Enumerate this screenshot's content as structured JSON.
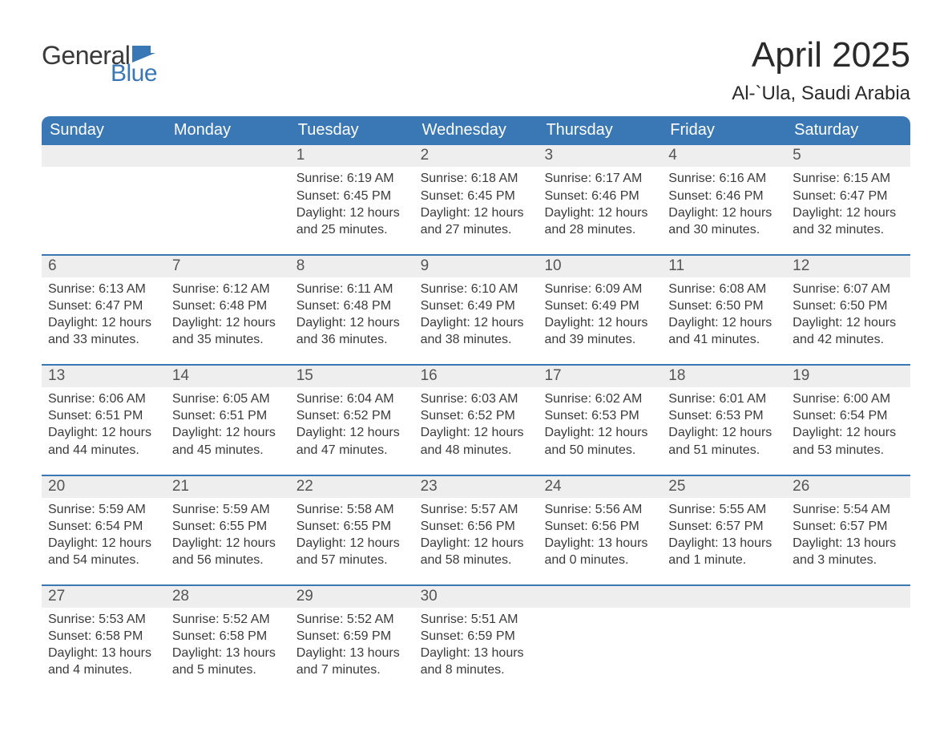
{
  "colors": {
    "header_bg": "#3a78b5",
    "header_text": "#ffffff",
    "daynum_bg": "#eeeeee",
    "daynum_text": "#555555",
    "body_text": "#3b3b3b",
    "rule": "#3a78b5",
    "title_text": "#2a2a2a",
    "logo_gray": "#3a3a3a",
    "logo_blue": "#3a78b5",
    "page_bg": "#ffffff"
  },
  "logo": {
    "line1": "General",
    "line2": "Blue"
  },
  "title": "April 2025",
  "subtitle": "Al-`Ula, Saudi Arabia",
  "dayHeaders": [
    "Sunday",
    "Monday",
    "Tuesday",
    "Wednesday",
    "Thursday",
    "Friday",
    "Saturday"
  ],
  "weeks": [
    [
      null,
      null,
      {
        "n": "1",
        "sunrise": "6:19 AM",
        "sunset": "6:45 PM",
        "daylight": "12 hours and 25 minutes."
      },
      {
        "n": "2",
        "sunrise": "6:18 AM",
        "sunset": "6:45 PM",
        "daylight": "12 hours and 27 minutes."
      },
      {
        "n": "3",
        "sunrise": "6:17 AM",
        "sunset": "6:46 PM",
        "daylight": "12 hours and 28 minutes."
      },
      {
        "n": "4",
        "sunrise": "6:16 AM",
        "sunset": "6:46 PM",
        "daylight": "12 hours and 30 minutes."
      },
      {
        "n": "5",
        "sunrise": "6:15 AM",
        "sunset": "6:47 PM",
        "daylight": "12 hours and 32 minutes."
      }
    ],
    [
      {
        "n": "6",
        "sunrise": "6:13 AM",
        "sunset": "6:47 PM",
        "daylight": "12 hours and 33 minutes."
      },
      {
        "n": "7",
        "sunrise": "6:12 AM",
        "sunset": "6:48 PM",
        "daylight": "12 hours and 35 minutes."
      },
      {
        "n": "8",
        "sunrise": "6:11 AM",
        "sunset": "6:48 PM",
        "daylight": "12 hours and 36 minutes."
      },
      {
        "n": "9",
        "sunrise": "6:10 AM",
        "sunset": "6:49 PM",
        "daylight": "12 hours and 38 minutes."
      },
      {
        "n": "10",
        "sunrise": "6:09 AM",
        "sunset": "6:49 PM",
        "daylight": "12 hours and 39 minutes."
      },
      {
        "n": "11",
        "sunrise": "6:08 AM",
        "sunset": "6:50 PM",
        "daylight": "12 hours and 41 minutes."
      },
      {
        "n": "12",
        "sunrise": "6:07 AM",
        "sunset": "6:50 PM",
        "daylight": "12 hours and 42 minutes."
      }
    ],
    [
      {
        "n": "13",
        "sunrise": "6:06 AM",
        "sunset": "6:51 PM",
        "daylight": "12 hours and 44 minutes."
      },
      {
        "n": "14",
        "sunrise": "6:05 AM",
        "sunset": "6:51 PM",
        "daylight": "12 hours and 45 minutes."
      },
      {
        "n": "15",
        "sunrise": "6:04 AM",
        "sunset": "6:52 PM",
        "daylight": "12 hours and 47 minutes."
      },
      {
        "n": "16",
        "sunrise": "6:03 AM",
        "sunset": "6:52 PM",
        "daylight": "12 hours and 48 minutes."
      },
      {
        "n": "17",
        "sunrise": "6:02 AM",
        "sunset": "6:53 PM",
        "daylight": "12 hours and 50 minutes."
      },
      {
        "n": "18",
        "sunrise": "6:01 AM",
        "sunset": "6:53 PM",
        "daylight": "12 hours and 51 minutes."
      },
      {
        "n": "19",
        "sunrise": "6:00 AM",
        "sunset": "6:54 PM",
        "daylight": "12 hours and 53 minutes."
      }
    ],
    [
      {
        "n": "20",
        "sunrise": "5:59 AM",
        "sunset": "6:54 PM",
        "daylight": "12 hours and 54 minutes."
      },
      {
        "n": "21",
        "sunrise": "5:59 AM",
        "sunset": "6:55 PM",
        "daylight": "12 hours and 56 minutes."
      },
      {
        "n": "22",
        "sunrise": "5:58 AM",
        "sunset": "6:55 PM",
        "daylight": "12 hours and 57 minutes."
      },
      {
        "n": "23",
        "sunrise": "5:57 AM",
        "sunset": "6:56 PM",
        "daylight": "12 hours and 58 minutes."
      },
      {
        "n": "24",
        "sunrise": "5:56 AM",
        "sunset": "6:56 PM",
        "daylight": "13 hours and 0 minutes."
      },
      {
        "n": "25",
        "sunrise": "5:55 AM",
        "sunset": "6:57 PM",
        "daylight": "13 hours and 1 minute."
      },
      {
        "n": "26",
        "sunrise": "5:54 AM",
        "sunset": "6:57 PM",
        "daylight": "13 hours and 3 minutes."
      }
    ],
    [
      {
        "n": "27",
        "sunrise": "5:53 AM",
        "sunset": "6:58 PM",
        "daylight": "13 hours and 4 minutes."
      },
      {
        "n": "28",
        "sunrise": "5:52 AM",
        "sunset": "6:58 PM",
        "daylight": "13 hours and 5 minutes."
      },
      {
        "n": "29",
        "sunrise": "5:52 AM",
        "sunset": "6:59 PM",
        "daylight": "13 hours and 7 minutes."
      },
      {
        "n": "30",
        "sunrise": "5:51 AM",
        "sunset": "6:59 PM",
        "daylight": "13 hours and 8 minutes."
      },
      null,
      null,
      null
    ]
  ],
  "labels": {
    "sunrise": "Sunrise:",
    "sunset": "Sunset:",
    "daylight": "Daylight:"
  }
}
